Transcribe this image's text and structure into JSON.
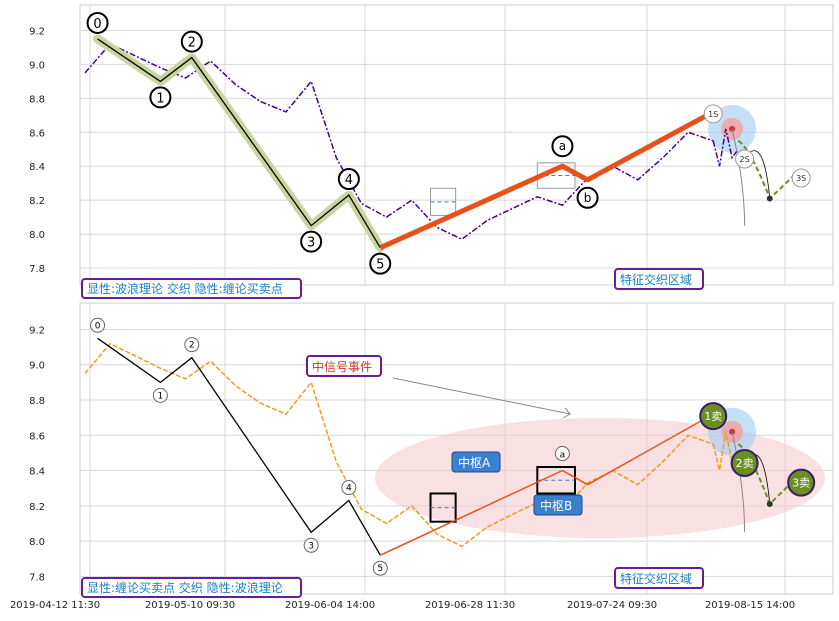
{
  "colors": {
    "price_top": "#4b0082",
    "price_bottom": "#e8a020",
    "wave_line": "#000000",
    "wave_glow": "#c9d4a0",
    "abc_line": "#e8501a",
    "box_border": "#6a1b9a",
    "box_text": "#1a7fc0",
    "event_text": "#c0392b",
    "zs_fill": "#3b7fd1",
    "sell_fill": "#6b8e23",
    "ellipse": "#f4c6cc"
  },
  "x_ticks": [
    "2019-04-12 11:30",
    "2019-05-10 09:30",
    "2019-06-04 14:00",
    "2019-06-28 11:30",
    "2019-07-24 09:30",
    "2019-08-15 14:00"
  ],
  "panels": [
    {
      "id": "top",
      "legend_box": "显性:波浪理论 交织 隐性:缠论买卖点",
      "region_box": "特征交织区域",
      "wave_labels": [
        "0",
        "1",
        "2",
        "3",
        "4",
        "5"
      ],
      "abc_labels": [
        "a",
        "b"
      ],
      "sell_labels": [
        "1S",
        "2S",
        "3S"
      ]
    },
    {
      "id": "bottom",
      "legend_box": "显性:缠论买卖点 交织 隐性:波浪理论",
      "region_box": "特征交织区域",
      "event_box": "中信号事件",
      "zs_a": "中枢A",
      "zs_b": "中枢B",
      "wave_labels": [
        "0",
        "1",
        "2",
        "3",
        "4",
        "5"
      ],
      "abc_labels": [
        "a"
      ],
      "sell_labels": [
        "1卖",
        "2卖",
        "3卖"
      ]
    }
  ],
  "chart_data": [
    {
      "type": "line",
      "ylim": [
        7.7,
        9.35
      ],
      "y_ticks": [
        7.8,
        8.0,
        8.2,
        8.4,
        8.6,
        8.8,
        9.0,
        9.2
      ],
      "series": [
        {
          "x": [
            0,
            4,
            8,
            12,
            16,
            20,
            24,
            28,
            32,
            36,
            40,
            44,
            48,
            52,
            56,
            60,
            64,
            68,
            72,
            76,
            80,
            84,
            88,
            92,
            96,
            100
          ],
          "values": [
            8.95,
            9.12,
            9.05,
            8.98,
            8.92,
            9.02,
            8.88,
            8.78,
            8.72,
            8.9,
            8.45,
            8.18,
            8.1,
            8.2,
            8.04,
            7.97,
            8.08,
            8.15,
            8.22,
            8.17,
            8.33,
            8.4,
            8.32,
            8.45,
            8.6,
            8.55
          ]
        },
        {
          "x": [
            100,
            101,
            102,
            103,
            104
          ],
          "values": [
            8.55,
            8.4,
            8.62,
            8.45,
            8.5
          ]
        }
      ],
      "waves": {
        "x": [
          2,
          12,
          17,
          36,
          42,
          47
        ],
        "values": [
          9.15,
          8.9,
          9.04,
          8.05,
          8.23,
          7.92
        ]
      },
      "abc": {
        "x": [
          47,
          76,
          80,
          100
        ],
        "values": [
          7.92,
          8.4,
          8.32,
          8.72
        ]
      },
      "forecast": {
        "x": [
          103,
          105,
          109,
          113
        ],
        "values": [
          8.62,
          8.55,
          8.21,
          8.35
        ]
      }
    },
    {
      "type": "line",
      "ylim": [
        7.7,
        9.35
      ],
      "y_ticks": [
        7.8,
        8.0,
        8.2,
        8.4,
        8.6,
        8.8,
        9.0,
        9.2
      ],
      "series": [
        {
          "x": [
            0,
            4,
            8,
            12,
            16,
            20,
            24,
            28,
            32,
            36,
            40,
            44,
            48,
            52,
            56,
            60,
            64,
            68,
            72,
            76,
            80,
            84,
            88,
            92,
            96,
            100
          ],
          "values": [
            8.95,
            9.12,
            9.05,
            8.98,
            8.92,
            9.02,
            8.88,
            8.78,
            8.72,
            8.9,
            8.45,
            8.18,
            8.1,
            8.2,
            8.04,
            7.97,
            8.08,
            8.15,
            8.22,
            8.17,
            8.33,
            8.4,
            8.32,
            8.45,
            8.6,
            8.55
          ]
        },
        {
          "x": [
            100,
            101,
            102,
            103,
            104
          ],
          "values": [
            8.55,
            8.4,
            8.62,
            8.45,
            8.5
          ]
        }
      ],
      "waves": {
        "x": [
          2,
          12,
          17,
          36,
          42,
          47
        ],
        "values": [
          9.15,
          8.9,
          9.04,
          8.05,
          8.23,
          7.92
        ]
      },
      "abc": {
        "x": [
          47,
          76,
          80,
          100
        ],
        "values": [
          7.92,
          8.4,
          8.32,
          8.72
        ]
      },
      "forecast": {
        "x": [
          103,
          105,
          109,
          113
        ],
        "values": [
          8.62,
          8.55,
          8.21,
          8.35
        ]
      }
    }
  ]
}
